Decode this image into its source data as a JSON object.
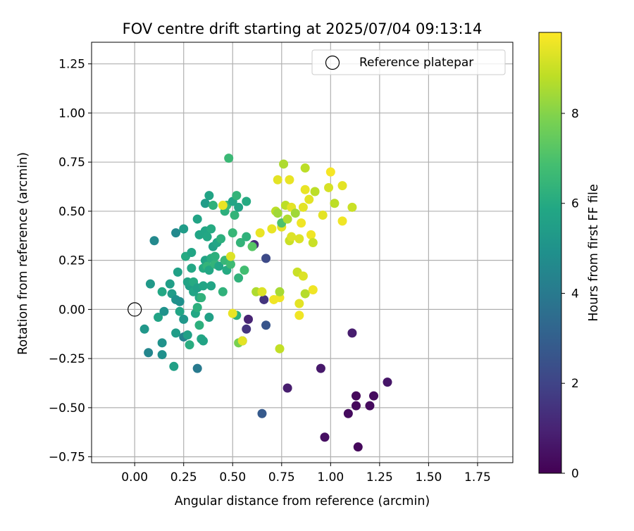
{
  "chart_data": {
    "type": "scatter",
    "title": "FOV centre drift starting at 2025/07/04 09:13:14",
    "xlabel": "Angular distance from reference (arcmin)",
    "ylabel": "Rotation from reference (arcmin)",
    "xlim": [
      -0.22,
      1.93
    ],
    "ylim": [
      -0.78,
      1.36
    ],
    "xticks": [
      0.0,
      0.25,
      0.5,
      0.75,
      1.0,
      1.25,
      1.5,
      1.75
    ],
    "xtick_labels": [
      "0.00",
      "0.25",
      "0.50",
      "0.75",
      "1.00",
      "1.25",
      "1.50",
      "1.75"
    ],
    "yticks": [
      -0.75,
      -0.5,
      -0.25,
      0.0,
      0.25,
      0.5,
      0.75,
      1.0,
      1.25
    ],
    "ytick_labels": [
      "−0.75",
      "−0.50",
      "−0.25",
      "0.00",
      "0.25",
      "0.50",
      "0.75",
      "1.00",
      "1.25"
    ],
    "grid": true,
    "legend": {
      "position": "top-right",
      "entries": [
        {
          "label": "Reference platepar",
          "marker": "open-circle"
        }
      ]
    },
    "reference_point": {
      "x": 0.0,
      "y": 0.0
    },
    "colorbar": {
      "label": "Hours from first FF file",
      "colormap": "viridis",
      "range": [
        0,
        9.8
      ],
      "ticks": [
        0,
        2,
        4,
        6,
        8
      ],
      "tick_labels": [
        "0",
        "2",
        "4",
        "6",
        "8"
      ]
    },
    "points": [
      {
        "x": 1.14,
        "y": -0.7,
        "c": 0.2
      },
      {
        "x": 0.97,
        "y": -0.65,
        "c": 0.4
      },
      {
        "x": 1.09,
        "y": -0.53,
        "c": 0.3
      },
      {
        "x": 1.13,
        "y": -0.49,
        "c": 0.2
      },
      {
        "x": 1.2,
        "y": -0.49,
        "c": 0.3
      },
      {
        "x": 1.13,
        "y": -0.44,
        "c": 0.2
      },
      {
        "x": 1.22,
        "y": -0.44,
        "c": 0.3
      },
      {
        "x": 1.29,
        "y": -0.37,
        "c": 0.6
      },
      {
        "x": 0.95,
        "y": -0.3,
        "c": 0.7
      },
      {
        "x": 1.11,
        "y": -0.12,
        "c": 0.8
      },
      {
        "x": 0.78,
        "y": -0.4,
        "c": 0.8
      },
      {
        "x": 0.65,
        "y": -0.53,
        "c": 2.8
      },
      {
        "x": 0.58,
        "y": -0.05,
        "c": 1.0
      },
      {
        "x": 0.57,
        "y": -0.1,
        "c": 1.5
      },
      {
        "x": 0.55,
        "y": -0.16,
        "c": 2.0
      },
      {
        "x": 0.66,
        "y": 0.05,
        "c": 1.5
      },
      {
        "x": 0.67,
        "y": -0.08,
        "c": 2.6
      },
      {
        "x": 0.67,
        "y": 0.26,
        "c": 2.2
      },
      {
        "x": 0.61,
        "y": 0.33,
        "c": 1.2
      },
      {
        "x": 0.32,
        "y": -0.3,
        "c": 4.0
      },
      {
        "x": 0.25,
        "y": -0.14,
        "c": 4.3
      },
      {
        "x": 0.07,
        "y": -0.22,
        "c": 4.5
      },
      {
        "x": 0.14,
        "y": -0.23,
        "c": 4.9
      },
      {
        "x": 0.2,
        "y": -0.29,
        "c": 5.6
      },
      {
        "x": 0.14,
        "y": -0.17,
        "c": 5.0
      },
      {
        "x": 0.05,
        "y": -0.1,
        "c": 5.2
      },
      {
        "x": 0.12,
        "y": -0.04,
        "c": 5.7
      },
      {
        "x": 0.15,
        "y": -0.01,
        "c": 5.0
      },
      {
        "x": 0.14,
        "y": 0.09,
        "c": 5.9
      },
      {
        "x": 0.08,
        "y": 0.13,
        "c": 5.3
      },
      {
        "x": 0.1,
        "y": 0.35,
        "c": 4.6
      },
      {
        "x": 0.21,
        "y": 0.39,
        "c": 4.6
      },
      {
        "x": 0.18,
        "y": 0.13,
        "c": 5.5
      },
      {
        "x": 0.19,
        "y": 0.08,
        "c": 5.4
      },
      {
        "x": 0.21,
        "y": 0.05,
        "c": 5.0
      },
      {
        "x": 0.23,
        "y": 0.04,
        "c": 4.9
      },
      {
        "x": 0.22,
        "y": 0.19,
        "c": 5.6
      },
      {
        "x": 0.23,
        "y": -0.01,
        "c": 5.8
      },
      {
        "x": 0.25,
        "y": -0.05,
        "c": 5.2
      },
      {
        "x": 0.21,
        "y": -0.12,
        "c": 5.4
      },
      {
        "x": 0.26,
        "y": 0.27,
        "c": 6.0
      },
      {
        "x": 0.25,
        "y": 0.41,
        "c": 5.4
      },
      {
        "x": 0.27,
        "y": -0.13,
        "c": 5.6
      },
      {
        "x": 0.28,
        "y": -0.18,
        "c": 6.1
      },
      {
        "x": 0.28,
        "y": 0.12,
        "c": 5.5
      },
      {
        "x": 0.27,
        "y": 0.14,
        "c": 5.7
      },
      {
        "x": 0.29,
        "y": 0.21,
        "c": 5.9
      },
      {
        "x": 0.29,
        "y": 0.29,
        "c": 5.8
      },
      {
        "x": 0.3,
        "y": 0.09,
        "c": 5.8
      },
      {
        "x": 0.3,
        "y": 0.14,
        "c": 6.0
      },
      {
        "x": 0.31,
        "y": -0.02,
        "c": 5.9
      },
      {
        "x": 0.32,
        "y": 0.01,
        "c": 6.2
      },
      {
        "x": 0.32,
        "y": 0.11,
        "c": 5.6
      },
      {
        "x": 0.32,
        "y": 0.46,
        "c": 5.7
      },
      {
        "x": 0.33,
        "y": 0.06,
        "c": 5.9
      },
      {
        "x": 0.33,
        "y": 0.38,
        "c": 5.8
      },
      {
        "x": 0.33,
        "y": -0.08,
        "c": 6.2
      },
      {
        "x": 0.34,
        "y": -0.15,
        "c": 5.9
      },
      {
        "x": 0.35,
        "y": -0.16,
        "c": 5.7
      },
      {
        "x": 0.34,
        "y": 0.06,
        "c": 6.3
      },
      {
        "x": 0.35,
        "y": 0.12,
        "c": 5.8
      },
      {
        "x": 0.35,
        "y": 0.21,
        "c": 6.0
      },
      {
        "x": 0.36,
        "y": 0.25,
        "c": 5.7
      },
      {
        "x": 0.36,
        "y": 0.4,
        "c": 5.8
      },
      {
        "x": 0.36,
        "y": 0.54,
        "c": 5.4
      },
      {
        "x": 0.37,
        "y": 0.37,
        "c": 5.9
      },
      {
        "x": 0.37,
        "y": 0.22,
        "c": 6.4
      },
      {
        "x": 0.38,
        "y": 0.2,
        "c": 5.9
      },
      {
        "x": 0.38,
        "y": 0.58,
        "c": 5.7
      },
      {
        "x": 0.38,
        "y": -0.04,
        "c": 5.6
      },
      {
        "x": 0.39,
        "y": 0.12,
        "c": 5.8
      },
      {
        "x": 0.39,
        "y": 0.26,
        "c": 6.1
      },
      {
        "x": 0.39,
        "y": 0.41,
        "c": 6.0
      },
      {
        "x": 0.4,
        "y": 0.32,
        "c": 5.6
      },
      {
        "x": 0.4,
        "y": 0.53,
        "c": 6.3
      },
      {
        "x": 0.41,
        "y": 0.23,
        "c": 6.4
      },
      {
        "x": 0.41,
        "y": 0.27,
        "c": 6.2
      },
      {
        "x": 0.42,
        "y": 0.34,
        "c": 5.8
      },
      {
        "x": 0.43,
        "y": 0.22,
        "c": 5.8
      },
      {
        "x": 0.44,
        "y": 0.36,
        "c": 6.2
      },
      {
        "x": 0.45,
        "y": 0.09,
        "c": 6.3
      },
      {
        "x": 0.46,
        "y": 0.25,
        "c": 6.5
      },
      {
        "x": 0.46,
        "y": 0.5,
        "c": 6.2
      },
      {
        "x": 0.47,
        "y": 0.2,
        "c": 6.0
      },
      {
        "x": 0.47,
        "y": 0.53,
        "c": 6.6
      },
      {
        "x": 0.48,
        "y": 0.77,
        "c": 6.6
      },
      {
        "x": 0.49,
        "y": 0.23,
        "c": 6.7
      },
      {
        "x": 0.5,
        "y": 0.39,
        "c": 6.5
      },
      {
        "x": 0.5,
        "y": 0.55,
        "c": 5.8
      },
      {
        "x": 0.51,
        "y": 0.48,
        "c": 6.4
      },
      {
        "x": 0.52,
        "y": 0.58,
        "c": 6.4
      },
      {
        "x": 0.52,
        "y": -0.03,
        "c": 6.2
      },
      {
        "x": 0.53,
        "y": 0.52,
        "c": 5.7
      },
      {
        "x": 0.53,
        "y": 0.16,
        "c": 6.3
      },
      {
        "x": 0.54,
        "y": 0.34,
        "c": 6.4
      },
      {
        "x": 0.56,
        "y": 0.2,
        "c": 6.8
      },
      {
        "x": 0.57,
        "y": 0.55,
        "c": 6.0
      },
      {
        "x": 0.57,
        "y": 0.37,
        "c": 6.3
      },
      {
        "x": 0.6,
        "y": 0.32,
        "c": 7.2
      },
      {
        "x": 0.53,
        "y": -0.17,
        "c": 7.8
      },
      {
        "x": 0.45,
        "y": 0.53,
        "c": 9.5
      },
      {
        "x": 0.49,
        "y": 0.27,
        "c": 9.3
      },
      {
        "x": 0.5,
        "y": -0.02,
        "c": 9.5
      },
      {
        "x": 0.55,
        "y": -0.16,
        "c": 9.4
      },
      {
        "x": 0.62,
        "y": 0.09,
        "c": 8.6
      },
      {
        "x": 0.64,
        "y": 0.39,
        "c": 9.5
      },
      {
        "x": 0.65,
        "y": 0.09,
        "c": 9.3
      },
      {
        "x": 0.7,
        "y": 0.41,
        "c": 9.5
      },
      {
        "x": 0.71,
        "y": 0.05,
        "c": 9.6
      },
      {
        "x": 0.72,
        "y": 0.5,
        "c": 8.8
      },
      {
        "x": 0.73,
        "y": 0.66,
        "c": 9.4
      },
      {
        "x": 0.73,
        "y": 0.49,
        "c": 8.4
      },
      {
        "x": 0.74,
        "y": 0.06,
        "c": 9.6
      },
      {
        "x": 0.74,
        "y": 0.09,
        "c": 8.5
      },
      {
        "x": 0.74,
        "y": -0.2,
        "c": 8.9
      },
      {
        "x": 0.75,
        "y": 0.42,
        "c": 9.4
      },
      {
        "x": 0.75,
        "y": 0.44,
        "c": 7.0
      },
      {
        "x": 0.76,
        "y": 0.74,
        "c": 8.6
      },
      {
        "x": 0.77,
        "y": 0.53,
        "c": 8.8
      },
      {
        "x": 0.78,
        "y": 0.46,
        "c": 8.6
      },
      {
        "x": 0.79,
        "y": 0.35,
        "c": 9.0
      },
      {
        "x": 0.79,
        "y": 0.66,
        "c": 9.5
      },
      {
        "x": 0.8,
        "y": 0.37,
        "c": 9.3
      },
      {
        "x": 0.8,
        "y": 0.52,
        "c": 9.4
      },
      {
        "x": 0.82,
        "y": 0.49,
        "c": 8.4
      },
      {
        "x": 0.83,
        "y": 0.19,
        "c": 9.0
      },
      {
        "x": 0.84,
        "y": 0.36,
        "c": 9.3
      },
      {
        "x": 0.84,
        "y": 0.03,
        "c": 9.4
      },
      {
        "x": 0.84,
        "y": -0.03,
        "c": 9.6
      },
      {
        "x": 0.85,
        "y": 0.44,
        "c": 9.6
      },
      {
        "x": 0.86,
        "y": 0.17,
        "c": 9.3
      },
      {
        "x": 0.86,
        "y": 0.52,
        "c": 9.4
      },
      {
        "x": 0.87,
        "y": 0.08,
        "c": 8.7
      },
      {
        "x": 0.87,
        "y": 0.61,
        "c": 9.5
      },
      {
        "x": 0.87,
        "y": 0.72,
        "c": 8.8
      },
      {
        "x": 0.89,
        "y": 0.56,
        "c": 9.4
      },
      {
        "x": 0.9,
        "y": 0.38,
        "c": 9.6
      },
      {
        "x": 0.91,
        "y": 0.1,
        "c": 9.6
      },
      {
        "x": 0.91,
        "y": 0.34,
        "c": 9.0
      },
      {
        "x": 0.92,
        "y": 0.6,
        "c": 8.8
      },
      {
        "x": 0.96,
        "y": 0.48,
        "c": 9.4
      },
      {
        "x": 0.99,
        "y": 0.62,
        "c": 9.2
      },
      {
        "x": 1.0,
        "y": 0.7,
        "c": 9.7
      },
      {
        "x": 1.02,
        "y": 0.54,
        "c": 8.8
      },
      {
        "x": 1.06,
        "y": 0.63,
        "c": 9.4
      },
      {
        "x": 1.06,
        "y": 0.45,
        "c": 9.6
      },
      {
        "x": 1.11,
        "y": 0.52,
        "c": 9.0
      }
    ]
  }
}
